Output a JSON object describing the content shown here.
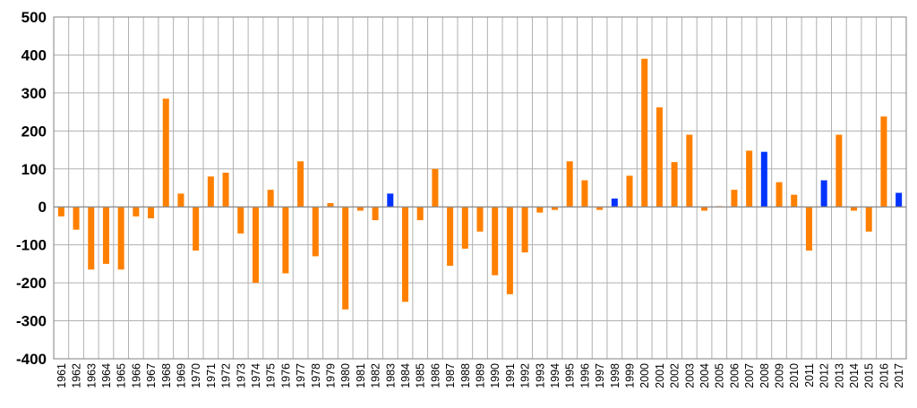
{
  "chart_data": {
    "type": "bar",
    "title": "",
    "xlabel": "",
    "ylabel": "",
    "ylim": [
      -400,
      500
    ],
    "yticks": [
      500,
      400,
      300,
      200,
      100,
      0,
      -100,
      -200,
      -300,
      -400
    ],
    "grid": true,
    "legend": "none",
    "colors": {
      "default": "#FF8000",
      "highlight": "#0033FF",
      "grid": "#B0B0B0",
      "axis": "#808080"
    },
    "categories": [
      "1961",
      "1962",
      "1963",
      "1964",
      "1965",
      "1966",
      "1967",
      "1968",
      "1969",
      "1970",
      "1971",
      "1972",
      "1973",
      "1974",
      "1975",
      "1976",
      "1977",
      "1978",
      "1979",
      "1980",
      "1981",
      "1982",
      "1983",
      "1984",
      "1985",
      "1986",
      "1987",
      "1988",
      "1989",
      "1990",
      "1991",
      "1992",
      "1993",
      "1994",
      "1995",
      "1996",
      "1997",
      "1998",
      "1999",
      "2000",
      "2001",
      "2002",
      "2003",
      "2004",
      "2005",
      "2006",
      "2007",
      "2008",
      "2009",
      "2010",
      "2011",
      "2012",
      "2013",
      "2014",
      "2015",
      "2016",
      "2017"
    ],
    "values": [
      -25,
      -60,
      -165,
      -150,
      -165,
      -25,
      -30,
      285,
      35,
      -115,
      80,
      90,
      -70,
      -200,
      45,
      -175,
      120,
      -130,
      10,
      -270,
      -10,
      -35,
      35,
      -250,
      -35,
      100,
      -155,
      -110,
      -65,
      -180,
      -230,
      -120,
      -15,
      -8,
      120,
      70,
      -8,
      22,
      82,
      390,
      262,
      118,
      190,
      -10,
      2,
      45,
      148,
      145,
      65,
      32,
      -115,
      70,
      190,
      -10,
      -65,
      238,
      37
    ],
    "highlight_years": [
      "1983",
      "1998",
      "2008",
      "2012",
      "2017"
    ]
  }
}
